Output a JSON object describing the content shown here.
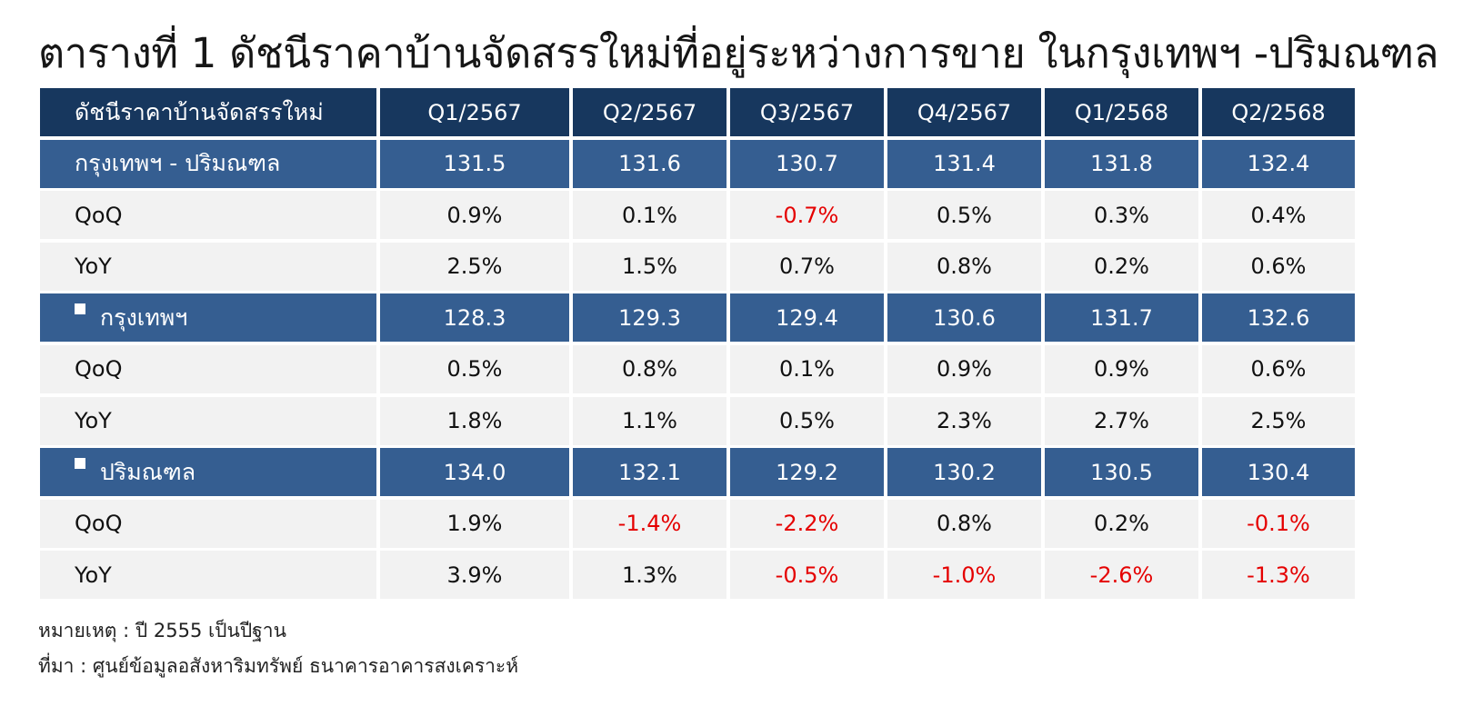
{
  "title": "ตารางที่ 1 ดัชนีราคาบ้านจัดสรรใหม่ที่อยู่ระหว่างการขาย ในกรุงเทพฯ -ปริมณฑล",
  "table": {
    "header": {
      "label": "ดัชนีราคาบ้านจัดสรรใหม่",
      "columns": [
        "Q1/2567",
        "Q2/2567",
        "Q3/2567",
        "Q4/2567",
        "Q1/2568",
        "Q2/2568"
      ]
    },
    "rows": [
      {
        "type": "index",
        "label": "กรุงเทพฯ - ปริมณฑล",
        "bullet": false,
        "values": [
          "131.5",
          "131.6",
          "130.7",
          "131.4",
          "131.8",
          "132.4"
        ],
        "negative": [
          false,
          false,
          false,
          false,
          false,
          false
        ]
      },
      {
        "type": "change",
        "label": "QoQ",
        "bullet": false,
        "values": [
          "0.9%",
          "0.1%",
          "-0.7%",
          "0.5%",
          "0.3%",
          "0.4%"
        ],
        "negative": [
          false,
          false,
          true,
          false,
          false,
          false
        ]
      },
      {
        "type": "change",
        "label": "YoY",
        "bullet": false,
        "values": [
          "2.5%",
          "1.5%",
          "0.7%",
          "0.8%",
          "0.2%",
          "0.6%"
        ],
        "negative": [
          false,
          false,
          false,
          false,
          false,
          false
        ]
      },
      {
        "type": "index",
        "label": "กรุงเทพฯ",
        "bullet": true,
        "values": [
          "128.3",
          "129.3",
          "129.4",
          "130.6",
          "131.7",
          "132.6"
        ],
        "negative": [
          false,
          false,
          false,
          false,
          false,
          false
        ]
      },
      {
        "type": "change",
        "label": "QoQ",
        "bullet": false,
        "values": [
          "0.5%",
          "0.8%",
          "0.1%",
          "0.9%",
          "0.9%",
          "0.6%"
        ],
        "negative": [
          false,
          false,
          false,
          false,
          false,
          false
        ]
      },
      {
        "type": "change",
        "label": "YoY",
        "bullet": false,
        "values": [
          "1.8%",
          "1.1%",
          "0.5%",
          "2.3%",
          "2.7%",
          "2.5%"
        ],
        "negative": [
          false,
          false,
          false,
          false,
          false,
          false
        ]
      },
      {
        "type": "index",
        "label": "ปริมณฑล",
        "bullet": true,
        "values": [
          "134.0",
          "132.1",
          "129.2",
          "130.2",
          "130.5",
          "130.4"
        ],
        "negative": [
          false,
          false,
          false,
          false,
          false,
          false
        ]
      },
      {
        "type": "change",
        "label": "QoQ",
        "bullet": false,
        "values": [
          "1.9%",
          "-1.4%",
          "-2.2%",
          "0.8%",
          "0.2%",
          "-0.1%"
        ],
        "negative": [
          false,
          true,
          true,
          false,
          false,
          true
        ]
      },
      {
        "type": "change",
        "label": "YoY",
        "bullet": false,
        "values": [
          "3.9%",
          "1.3%",
          "-0.5%",
          "-1.0%",
          "-2.6%",
          "-1.3%"
        ],
        "negative": [
          false,
          false,
          true,
          true,
          true,
          true
        ]
      }
    ]
  },
  "notes": {
    "remark": "หมายเหตุ : ปี 2555 เป็นปีฐาน",
    "source": "ที่มา : ศูนย์ข้อมูลอสังหาริมทรัพย์ ธนาคารอาคารสงเคราะห์"
  },
  "colors": {
    "header_bg": "#17375e",
    "index_row_bg": "#355e91",
    "change_row_bg": "#f2f2f2",
    "negative_text": "#e50000"
  }
}
